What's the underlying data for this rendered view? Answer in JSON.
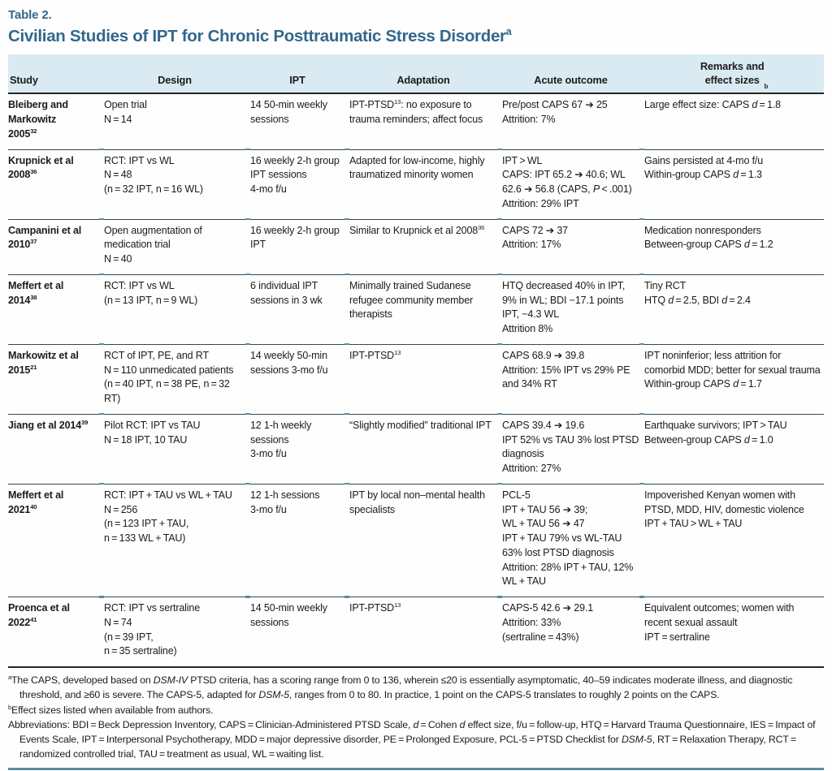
{
  "colors": {
    "accent": "#33678a",
    "band": "#d9eaf2",
    "rule_dark": "#37474f",
    "rule_heavy": "#262626",
    "rule_blue": "#5d8aa4",
    "text": "#1b1b1b"
  },
  "header": {
    "table_label": "Table 2.",
    "title": "Civilian Studies of IPT for Chronic Posttraumatic Stress Disorder^{a}"
  },
  "table": {
    "columns": [
      "Study",
      "Design",
      "IPT",
      "Adaptation",
      "Acute outcome",
      "Remarks and\neffect sizes^{b}"
    ],
    "rows": [
      {
        "study": [
          "Bleiberg and",
          "Markowitz",
          "2005^{32}"
        ],
        "design": [
          "Open trial",
          "N = 14"
        ],
        "ipt": [
          "14 50-min weekly sessions"
        ],
        "adaptation": [
          "IPT-PTSD^{13}: no exposure to trauma reminders; affect focus"
        ],
        "acute_outcome": [
          "Pre/post CAPS 67 ➔ 25",
          "Attrition: 7%"
        ],
        "remarks": [
          "Large effect size: CAPS *d* = 1.8"
        ]
      },
      {
        "study": [
          "Krupnick et al",
          "2008^{36}"
        ],
        "design": [
          "RCT: IPT vs WL",
          "N = 48",
          "(n = 32 IPT, n = 16 WL)"
        ],
        "ipt": [
          "16 weekly 2-h group IPT sessions",
          "4-mo f/u"
        ],
        "adaptation": [
          "Adapted for low-income, highly traumatized minority women"
        ],
        "acute_outcome": [
          "IPT > WL",
          "CAPS: IPT 65.2 ➔ 40.6; WL 62.6 ➔ 56.8 (CAPS, *P* < .001)",
          "Attrition: 29% IPT"
        ],
        "remarks": [
          "Gains persisted at 4-mo f/u",
          "Within-group CAPS *d* = 1.3"
        ]
      },
      {
        "study": [
          "Campanini et al",
          "2010^{37}"
        ],
        "design": [
          "Open augmentation of medication trial",
          "N = 40"
        ],
        "ipt": [
          "16 weekly 2-h group IPT"
        ],
        "adaptation": [
          "Similar to Krupnick et al 2008^{36}"
        ],
        "acute_outcome": [
          "CAPS 72 ➔ 37",
          "Attrition: 17%"
        ],
        "remarks": [
          "Medication nonresponders",
          "Between-group CAPS *d* = 1.2"
        ]
      },
      {
        "study": [
          "Meffert et al",
          "2014^{38}"
        ],
        "design": [
          "RCT: IPT vs WL",
          "(n = 13 IPT, n = 9 WL)"
        ],
        "ipt": [
          "6 individual IPT sessions in 3 wk"
        ],
        "adaptation": [
          "Minimally trained Sudanese refugee community member therapists"
        ],
        "acute_outcome": [
          "HTQ decreased 40% in IPT, 9% in WL; BDI −17.1 points IPT, −4.3 WL",
          "Attrition 8%"
        ],
        "remarks": [
          "Tiny RCT",
          "HTQ *d* = 2.5, BDI *d* = 2.4"
        ]
      },
      {
        "study": [
          "Markowitz et al",
          "2015^{21}"
        ],
        "design": [
          "RCT of IPT, PE, and RT",
          "N = 110 unmedicated patients",
          "(n = 40 IPT, n = 38 PE, n = 32 RT)"
        ],
        "ipt": [
          "14 weekly 50-min sessions 3-mo f/u"
        ],
        "adaptation": [
          "IPT-PTSD^{13}"
        ],
        "acute_outcome": [
          "CAPS 68.9 ➔ 39.8",
          "Attrition: 15% IPT vs 29% PE and 34% RT"
        ],
        "remarks": [
          "IPT noninferior; less attrition for comorbid MDD; better for sexual trauma",
          "Within-group CAPS *d* = 1.7"
        ]
      },
      {
        "study": [
          "Jiang et al 2014^{39}"
        ],
        "design": [
          "Pilot RCT: IPT vs TAU",
          "N = 18 IPT, 10 TAU"
        ],
        "ipt": [
          "12 1-h weekly sessions",
          "3-mo f/u"
        ],
        "adaptation": [
          "“Slightly modified” traditional IPT"
        ],
        "acute_outcome": [
          "CAPS 39.4 ➔ 19.6",
          "IPT 52% vs TAU 3% lost PTSD diagnosis",
          "Attrition: 27%"
        ],
        "remarks": [
          "Earthquake survivors; IPT > TAU",
          "Between-group CAPS *d* = 1.0"
        ]
      },
      {
        "study": [
          "Meffert et al",
          "2021^{40}"
        ],
        "design": [
          "RCT: IPT + TAU vs WL + TAU",
          "N = 256",
          "(n = 123 IPT + TAU,",
          "n = 133 WL + TAU)"
        ],
        "ipt": [
          "12 1-h sessions",
          "3-mo f/u"
        ],
        "adaptation": [
          "IPT by local non–mental health specialists"
        ],
        "acute_outcome": [
          "PCL-5",
          "IPT + TAU 56 ➔ 39;",
          "WL + TAU 56 ➔ 47",
          "IPT + TAU 79% vs WL-TAU 63% lost PTSD diagnosis",
          "Attrition: 28% IPT + TAU, 12% WL + TAU"
        ],
        "remarks": [
          "Impoverished Kenyan women with PTSD, MDD, HIV, domestic violence",
          "IPT + TAU > WL + TAU"
        ]
      },
      {
        "study": [
          "Proenca et al",
          "2022^{41}"
        ],
        "design": [
          "RCT: IPT vs sertraline",
          "N = 74",
          "(n = 39 IPT,",
          "n = 35 sertraline)"
        ],
        "ipt": [
          "14 50-min weekly sessions"
        ],
        "adaptation": [
          "IPT-PTSD^{13}"
        ],
        "acute_outcome": [
          "CAPS-5 42.6 ➔ 29.1",
          "Attrition: 33%",
          "(sertraline = 43%)"
        ],
        "remarks": [
          "Equivalent outcomes; women with recent sexual assault",
          "IPT = sertraline"
        ]
      }
    ]
  },
  "footnotes": {
    "a": "^{a}The CAPS, developed based on *DSM-IV* PTSD criteria, has a scoring range from 0 to 136, wherein ≤20 is essentially asymptomatic, 40–59 indicates moderate illness, and diagnostic threshold, and ≥60 is severe. The CAPS-5, adapted for *DSM-5*, ranges from 0 to 80. In practice, 1 point on the CAPS-5 translates to roughly 2 points on the CAPS.",
    "b": "^{b}Effect sizes listed when available from authors.",
    "abbreviations": "Abbreviations: BDI = Beck Depression Inventory, CAPS = Clinician-Administered PTSD Scale, *d* = Cohen *d* effect size, f/u = follow-up, HTQ = Harvard Trauma Questionnaire, IES = Impact of Events Scale, IPT = Interpersonal Psychotherapy, MDD = major depressive disorder, PE = Prolonged Exposure, PCL-5 = PTSD Checklist for *DSM-5*, RT = Relaxation Therapy, RCT = randomized controlled trial, TAU = treatment as usual, WL = waiting list."
  }
}
